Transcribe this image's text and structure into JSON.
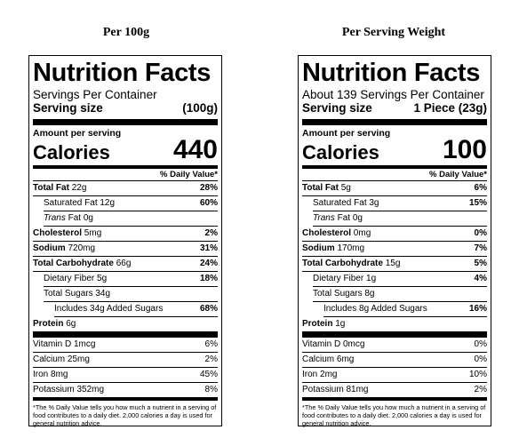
{
  "headings": {
    "left": "Per 100g",
    "right": "Per Serving Weight"
  },
  "labels": [
    {
      "title": "Nutrition Facts",
      "servings": "Servings Per Container",
      "serving_size_label": "Serving size",
      "serving_size_value": "(100g)",
      "amount_per_serving": "Amount per serving",
      "calories_label": "Calories",
      "calories_value": "440",
      "dv_header": "% Daily Value*",
      "total_fat": {
        "label": "Total Fat",
        "amount": "22g",
        "pct": "28%"
      },
      "saturated_fat": {
        "label": "Saturated Fat",
        "amount": "12g",
        "pct": "60%"
      },
      "trans_fat": {
        "label": "Trans",
        "rest": "Fat 0g"
      },
      "cholesterol": {
        "label": "Cholesterol",
        "amount": "5mg",
        "pct": "2%"
      },
      "sodium": {
        "label": "Sodium",
        "amount": "720mg",
        "pct": "31%"
      },
      "total_carb": {
        "label": "Total Carbohydrate",
        "amount": "66g",
        "pct": "24%"
      },
      "dietary_fiber": {
        "label": "Dietary Fiber",
        "amount": "5g",
        "pct": "18%"
      },
      "total_sugars": {
        "label": "Total Sugars",
        "amount": "34g"
      },
      "added_sugars": {
        "text": "Includes 34g Added Sugars",
        "pct": "68%"
      },
      "protein": {
        "label": "Protein",
        "amount": "6g"
      },
      "vitamin_d": {
        "text": "Vitamin D 1mcg",
        "pct": "6%"
      },
      "calcium": {
        "text": "Calcium 25mg",
        "pct": "2%"
      },
      "iron": {
        "text": "Iron 8mg",
        "pct": "45%"
      },
      "potassium": {
        "text": "Potassium 352mg",
        "pct": "8%"
      },
      "footnote": "*The % Daily Value tells you how much a nutrient in a serving of food contributes to a daily diet. 2,000 calories a day is used for general nutrition advice."
    },
    {
      "title": "Nutrition Facts",
      "servings": "About 139 Servings Per Container",
      "serving_size_label": "Serving size",
      "serving_size_value": "1 Piece (23g)",
      "amount_per_serving": "Amount per serving",
      "calories_label": "Calories",
      "calories_value": "100",
      "dv_header": "% Daily Value*",
      "total_fat": {
        "label": "Total Fat",
        "amount": "5g",
        "pct": "6%"
      },
      "saturated_fat": {
        "label": "Saturated Fat",
        "amount": "3g",
        "pct": "15%"
      },
      "trans_fat": {
        "label": "Trans",
        "rest": "Fat 0g"
      },
      "cholesterol": {
        "label": "Cholesterol",
        "amount": "0mg",
        "pct": "0%"
      },
      "sodium": {
        "label": "Sodium",
        "amount": "170mg",
        "pct": "7%"
      },
      "total_carb": {
        "label": "Total Carbohydrate",
        "amount": "15g",
        "pct": "5%"
      },
      "dietary_fiber": {
        "label": "Dietary Fiber",
        "amount": "1g",
        "pct": "4%"
      },
      "total_sugars": {
        "label": "Total Sugars",
        "amount": "8g"
      },
      "added_sugars": {
        "text": "Includes 8g Added Sugars",
        "pct": "16%"
      },
      "protein": {
        "label": "Protein",
        "amount": "1g"
      },
      "vitamin_d": {
        "text": "Vitamin D 0mcg",
        "pct": "0%"
      },
      "calcium": {
        "text": "Calcium 6mg",
        "pct": "0%"
      },
      "iron": {
        "text": "Iron 2mg",
        "pct": "10%"
      },
      "potassium": {
        "text": "Potassium 81mg",
        "pct": "2%"
      },
      "footnote": "*The % Daily Value tells you how much a nutrient in a serving of food contributes to a daily diet. 2,000 calories a day is used for general nutrition advice."
    }
  ]
}
